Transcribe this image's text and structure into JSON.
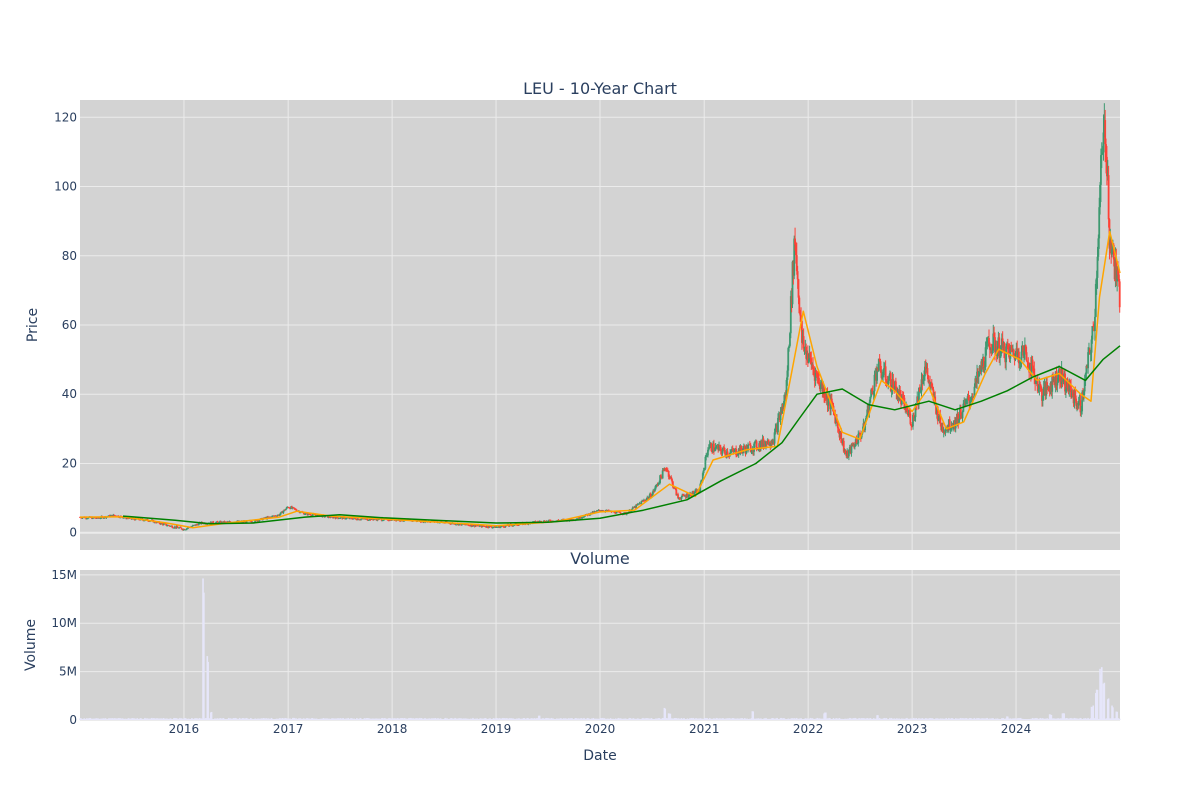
{
  "chart_data": [
    {
      "type": "candlestick",
      "title": "LEU - 10-Year Chart",
      "ylabel": "Price",
      "ylim": [
        -5,
        125
      ],
      "yticks": [
        0,
        20,
        40,
        60,
        80,
        100,
        120
      ],
      "x_range": [
        "2015-01-01",
        "2024-12-31"
      ],
      "grid": true,
      "series": [
        {
          "kind": "ohlc_close_approx",
          "color_up": "#3d9970",
          "color_down": "#ff4136",
          "points": [
            [
              "2015-01-01",
              4.5
            ],
            [
              "2015-03-01",
              4.2
            ],
            [
              "2015-05-01",
              5.0
            ],
            [
              "2015-07-01",
              4.0
            ],
            [
              "2015-09-01",
              3.6
            ],
            [
              "2015-11-01",
              2.2
            ],
            [
              "2016-01-01",
              1.0
            ],
            [
              "2016-03-01",
              2.8
            ],
            [
              "2016-06-01",
              3.0
            ],
            [
              "2016-09-01",
              3.3
            ],
            [
              "2016-12-01",
              5.2
            ],
            [
              "2017-01-01",
              7.5
            ],
            [
              "2017-03-01",
              5.5
            ],
            [
              "2017-06-01",
              4.5
            ],
            [
              "2017-09-01",
              4.0
            ],
            [
              "2018-01-01",
              3.8
            ],
            [
              "2018-06-01",
              3.2
            ],
            [
              "2018-10-01",
              2.2
            ],
            [
              "2019-01-01",
              1.6
            ],
            [
              "2019-06-01",
              3.2
            ],
            [
              "2019-10-01",
              3.8
            ],
            [
              "2020-01-01",
              6.5
            ],
            [
              "2020-04-01",
              5.5
            ],
            [
              "2020-07-01",
              11.0
            ],
            [
              "2020-08-20",
              19.0
            ],
            [
              "2020-10-01",
              10.0
            ],
            [
              "2020-12-15",
              12.0
            ],
            [
              "2021-01-15",
              25.0
            ],
            [
              "2021-04-01",
              23.0
            ],
            [
              "2021-07-01",
              25.0
            ],
            [
              "2021-09-01",
              27.0
            ],
            [
              "2021-10-15",
              40.0
            ],
            [
              "2021-11-15",
              86.0
            ],
            [
              "2021-12-10",
              55.0
            ],
            [
              "2022-02-01",
              45.0
            ],
            [
              "2022-04-01",
              35.0
            ],
            [
              "2022-05-15",
              22.0
            ],
            [
              "2022-07-15",
              30.0
            ],
            [
              "2022-09-01",
              48.0
            ],
            [
              "2022-11-01",
              42.0
            ],
            [
              "2023-01-01",
              32.0
            ],
            [
              "2023-02-15",
              48.0
            ],
            [
              "2023-04-15",
              30.0
            ],
            [
              "2023-06-01",
              32.0
            ],
            [
              "2023-08-01",
              40.0
            ],
            [
              "2023-10-01",
              55.0
            ],
            [
              "2023-12-01",
              52.0
            ],
            [
              "2024-02-01",
              52.0
            ],
            [
              "2024-04-01",
              40.0
            ],
            [
              "2024-06-01",
              46.0
            ],
            [
              "2024-08-15",
              36.0
            ],
            [
              "2024-10-01",
              60.0
            ],
            [
              "2024-10-25",
              104.0
            ],
            [
              "2024-11-10",
              118.0
            ],
            [
              "2024-11-25",
              85.0
            ],
            [
              "2024-12-31",
              68.0
            ]
          ]
        },
        {
          "kind": "moving_average_short",
          "color": "#ffa500",
          "points": [
            [
              "2015-01-01",
              4.5
            ],
            [
              "2015-06-01",
              4.6
            ],
            [
              "2015-11-01",
              2.8
            ],
            [
              "2016-02-01",
              1.4
            ],
            [
              "2016-06-01",
              2.8
            ],
            [
              "2016-12-01",
              4.5
            ],
            [
              "2017-02-01",
              6.2
            ],
            [
              "2017-06-01",
              4.8
            ],
            [
              "2018-01-01",
              3.8
            ],
            [
              "2018-10-01",
              2.5
            ],
            [
              "2019-01-01",
              2.0
            ],
            [
              "2019-08-01",
              3.2
            ],
            [
              "2020-01-01",
              6.0
            ],
            [
              "2020-05-01",
              6.5
            ],
            [
              "2020-09-01",
              14.0
            ],
            [
              "2020-12-01",
              10.5
            ],
            [
              "2021-02-01",
              21.0
            ],
            [
              "2021-06-01",
              24.0
            ],
            [
              "2021-09-15",
              25.0
            ],
            [
              "2021-11-01",
              45.0
            ],
            [
              "2021-12-15",
              64.0
            ],
            [
              "2022-02-01",
              48.0
            ],
            [
              "2022-05-01",
              29.0
            ],
            [
              "2022-07-01",
              27.0
            ],
            [
              "2022-09-15",
              44.0
            ],
            [
              "2022-11-01",
              41.0
            ],
            [
              "2023-01-01",
              35.0
            ],
            [
              "2023-03-01",
              42.0
            ],
            [
              "2023-05-01",
              30.0
            ],
            [
              "2023-07-01",
              32.0
            ],
            [
              "2023-09-15",
              46.0
            ],
            [
              "2023-11-01",
              53.0
            ],
            [
              "2024-01-15",
              50.0
            ],
            [
              "2024-03-15",
              44.0
            ],
            [
              "2024-06-01",
              46.0
            ],
            [
              "2024-08-15",
              40.0
            ],
            [
              "2024-09-20",
              38.0
            ],
            [
              "2024-10-20",
              68.0
            ],
            [
              "2024-11-25",
              87.0
            ],
            [
              "2024-12-31",
              75.0
            ]
          ]
        },
        {
          "kind": "moving_average_long",
          "color": "#008000",
          "points": [
            [
              "2015-06-01",
              4.8
            ],
            [
              "2015-12-01",
              3.6
            ],
            [
              "2016-04-01",
              2.6
            ],
            [
              "2016-09-01",
              2.8
            ],
            [
              "2017-03-01",
              4.5
            ],
            [
              "2017-07-01",
              5.2
            ],
            [
              "2017-12-01",
              4.3
            ],
            [
              "2018-06-01",
              3.6
            ],
            [
              "2019-01-01",
              2.8
            ],
            [
              "2019-07-01",
              3.0
            ],
            [
              "2020-01-01",
              4.2
            ],
            [
              "2020-06-01",
              6.5
            ],
            [
              "2020-11-01",
              9.5
            ],
            [
              "2021-03-01",
              15.0
            ],
            [
              "2021-07-01",
              20.0
            ],
            [
              "2021-10-01",
              26.0
            ],
            [
              "2021-12-01",
              33.0
            ],
            [
              "2022-02-01",
              40.0
            ],
            [
              "2022-05-01",
              41.5
            ],
            [
              "2022-08-01",
              37.0
            ],
            [
              "2022-11-01",
              35.5
            ],
            [
              "2023-03-01",
              38.0
            ],
            [
              "2023-06-01",
              35.5
            ],
            [
              "2023-09-01",
              38.0
            ],
            [
              "2023-12-01",
              41.0
            ],
            [
              "2024-03-01",
              45.0
            ],
            [
              "2024-06-01",
              48.0
            ],
            [
              "2024-09-01",
              44.0
            ],
            [
              "2024-11-01",
              50.0
            ],
            [
              "2024-12-31",
              54.0
            ]
          ]
        }
      ]
    },
    {
      "type": "bar",
      "title": "Volume",
      "xlabel": "Date",
      "ylabel": "Volume",
      "ylim": [
        0,
        15500000
      ],
      "yticks": [
        0,
        5000000,
        10000000,
        15000000
      ],
      "ytick_labels": [
        "0",
        "5M",
        "10M",
        "15M"
      ],
      "xticks": [
        "2016-01-01",
        "2017-01-01",
        "2018-01-01",
        "2019-01-01",
        "2020-01-01",
        "2021-01-01",
        "2022-01-01",
        "2023-01-01",
        "2024-01-01"
      ],
      "xtick_labels": [
        "2016",
        "2017",
        "2018",
        "2019",
        "2020",
        "2021",
        "2022",
        "2023",
        "2024"
      ],
      "bar_color": "#e6e6fa",
      "baseline": 120000,
      "spikes": [
        [
          "2016-03-10",
          15000000
        ],
        [
          "2016-03-25",
          6800000
        ],
        [
          "2016-04-05",
          900000
        ],
        [
          "2019-06-01",
          500000
        ],
        [
          "2020-08-15",
          1300000
        ],
        [
          "2020-09-01",
          700000
        ],
        [
          "2021-06-20",
          1000000
        ],
        [
          "2022-03-01",
          800000
        ],
        [
          "2022-09-01",
          500000
        ],
        [
          "2023-12-01",
          400000
        ],
        [
          "2024-05-01",
          600000
        ],
        [
          "2024-06-15",
          700000
        ],
        [
          "2024-09-25",
          1500000
        ],
        [
          "2024-10-10",
          3200000
        ],
        [
          "2024-10-25",
          5500000
        ],
        [
          "2024-11-05",
          4200000
        ],
        [
          "2024-11-20",
          2500000
        ],
        [
          "2024-12-05",
          1500000
        ],
        [
          "2024-12-20",
          900000
        ]
      ]
    }
  ],
  "colors": {
    "plot_bg": "#d3d3d3",
    "grid": "#ebebeb",
    "text": "#2a3f5f"
  }
}
